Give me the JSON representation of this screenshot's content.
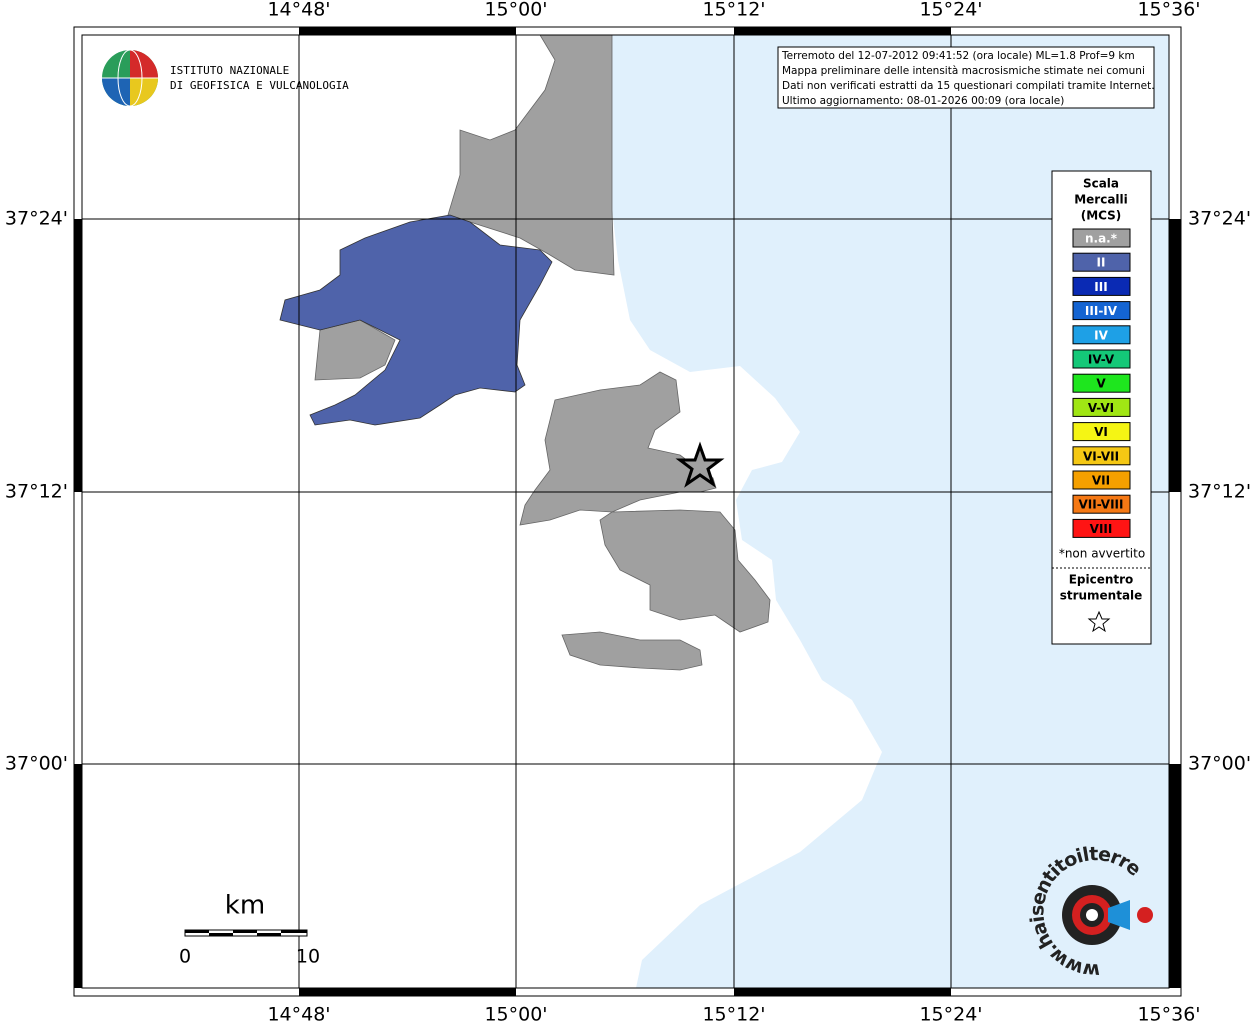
{
  "axes": {
    "lon_labels": [
      "14°48'",
      "15°00'",
      "15°12'",
      "15°24'",
      "15°36'"
    ],
    "lat_labels": [
      "37°24'",
      "37°12'",
      "37°00'"
    ]
  },
  "info": {
    "lines": [
      "Terremoto del 12-07-2012 09:41:52 (ora locale) ML=1.8 Prof=9 km",
      "Mappa preliminare delle intensità macrosismiche stimate nei comuni",
      "Dati non verificati estratti da 15 questionari compilati tramite Internet.",
      "Ultimo aggiornamento: 08-01-2026 00:09 (ora locale)"
    ]
  },
  "logo": {
    "lines": [
      "ISTITUTO NAZIONALE",
      "DI GEOFISICA E VULCANOLOGIA"
    ]
  },
  "legend": {
    "title": [
      "Scala",
      "Mercalli",
      "(MCS)"
    ],
    "items": [
      {
        "label": "n.a.*",
        "color": "#a0a0a0",
        "text_color": "#ffffff"
      },
      {
        "label": "II",
        "color": "#4f63aa",
        "text_color": "#ffffff"
      },
      {
        "label": "III",
        "color": "#0a2ab4",
        "text_color": "#ffffff"
      },
      {
        "label": "III-IV",
        "color": "#1464d2",
        "text_color": "#ffffff"
      },
      {
        "label": "IV",
        "color": "#1ea0e6",
        "text_color": "#ffffff"
      },
      {
        "label": "IV-V",
        "color": "#14c878",
        "text_color": "#000000"
      },
      {
        "label": "V",
        "color": "#1ee61e",
        "text_color": "#000000"
      },
      {
        "label": "V-VI",
        "color": "#a0e614",
        "text_color": "#000000"
      },
      {
        "label": "VI",
        "color": "#f5f514",
        "text_color": "#000000"
      },
      {
        "label": "VI-VII",
        "color": "#f5c814",
        "text_color": "#000000"
      },
      {
        "label": "VII",
        "color": "#f5a000",
        "text_color": "#000000"
      },
      {
        "label": "VII-VIII",
        "color": "#f57814",
        "text_color": "#000000"
      },
      {
        "label": "VIII",
        "color": "#ff1414",
        "text_color": "#000000"
      }
    ],
    "note": "*non avvertito",
    "epicenter": [
      "Epicentro",
      "strumentale"
    ]
  },
  "scale_bar": {
    "unit": "km",
    "start": "0",
    "end": "10"
  },
  "watermark": "www.haisentitoilterremoto.it"
}
